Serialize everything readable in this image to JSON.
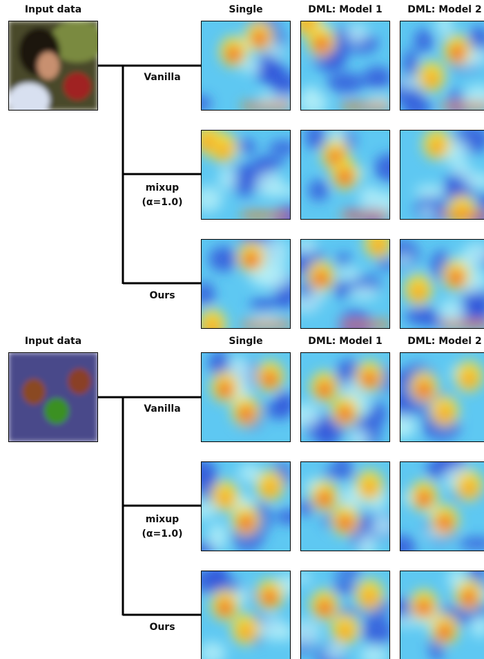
{
  "panels": [
    {
      "input_label": "Input data",
      "columns": [
        "Single",
        "DML: Model 1",
        "DML: Model 2"
      ],
      "rows": [
        {
          "label": [
            "Vanilla"
          ]
        },
        {
          "label": [
            "mixup",
            "(α=1.0)"
          ]
        },
        {
          "label": [
            "Ours"
          ]
        }
      ]
    },
    {
      "input_label": "Input data",
      "columns": [
        "Single",
        "DML: Model 1",
        "DML: Model 2"
      ],
      "rows": [
        {
          "label": [
            "Vanilla"
          ]
        },
        {
          "label": [
            "mixup",
            "(α=1.0)"
          ]
        },
        {
          "label": [
            "Ours"
          ]
        }
      ]
    }
  ]
}
